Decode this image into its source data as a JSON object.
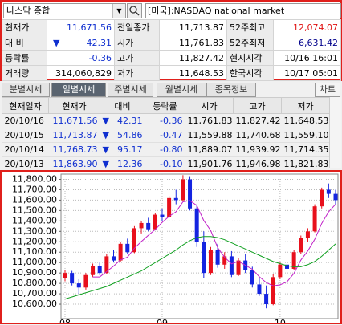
{
  "header": {
    "market": "나스닥 종합",
    "market_label": "[미국]:NASDAQ national market"
  },
  "quote": [
    {
      "label": "현재가",
      "value": "11,671.56",
      "label2": "전일종가",
      "value2": "11,713.87",
      "label3": "52주최고",
      "value3": "12,074.07"
    },
    {
      "label": "대 비",
      "arrow": "▼",
      "value": "42.31",
      "label2": "시가",
      "value2": "11,761.83",
      "label3": "52주최저",
      "value3": "6,631.42"
    },
    {
      "label": "등락률",
      "value": "-0.36",
      "label2": "고가",
      "value2": "11,827.42",
      "label3": "현지시각",
      "value3": "10/16 16:01"
    },
    {
      "label": "거래량",
      "value": "314,060,829",
      "label2": "저가",
      "value2": "11,648.53",
      "label3": "한국시각",
      "value3": "10/17 05:01"
    }
  ],
  "tabs": [
    "분별시세",
    "일별시세",
    "주별시세",
    "월별시세",
    "종목정보"
  ],
  "chart_button": "차트",
  "table": {
    "columns": [
      "현재일자",
      "현재가",
      "대비",
      "등락률",
      "시가",
      "고가",
      "저가"
    ],
    "rows": [
      [
        "20/10/16",
        "11,671.56",
        "▼",
        "42.31",
        "-0.36",
        "11,761.83",
        "11,827.42",
        "11,648.53"
      ],
      [
        "20/10/15",
        "11,713.87",
        "▼",
        "54.86",
        "-0.47",
        "11,559.88",
        "11,740.68",
        "11,559.10"
      ],
      [
        "20/10/14",
        "11,768.73",
        "▼",
        "95.17",
        "-0.80",
        "11,889.07",
        "11,939.92",
        "11,714.35"
      ],
      [
        "20/10/13",
        "11,863.90",
        "▼",
        "12.36",
        "-0.10",
        "11,901.76",
        "11,946.98",
        "11,821.83"
      ]
    ]
  },
  "chart_data": {
    "type": "candlestick",
    "categories": [
      "08",
      null,
      null,
      null,
      null,
      null,
      null,
      null,
      null,
      null,
      null,
      null,
      null,
      null,
      "09",
      null,
      null,
      null,
      null,
      null,
      null,
      null,
      null,
      null,
      null,
      null,
      null,
      null,
      null,
      null,
      null,
      "10",
      null,
      null,
      null,
      null,
      null,
      null,
      null,
      null
    ],
    "open": [
      10850,
      10900,
      10800,
      10760,
      10880,
      10970,
      10900,
      11060,
      11020,
      11180,
      11100,
      11330,
      11380,
      11320,
      11460,
      11440,
      11620,
      11600,
      11800,
      11520,
      11200,
      10900,
      11120,
      10980,
      11060,
      10880,
      11020,
      10930,
      10790,
      10700,
      10600,
      10860,
      10980,
      10940,
      11100,
      11240,
      11300,
      11540,
      11700,
      11660
    ],
    "high": [
      10930,
      10920,
      10840,
      10900,
      10990,
      11000,
      11080,
      11120,
      11200,
      11230,
      11350,
      11400,
      11430,
      11480,
      11520,
      11640,
      11700,
      11840,
      11830,
      11560,
      11300,
      11150,
      11180,
      11100,
      11110,
      11040,
      11080,
      10960,
      10850,
      10780,
      10890,
      11000,
      11060,
      11120,
      11260,
      11330,
      11560,
      11720,
      11760,
      11700
    ],
    "low": [
      10820,
      10780,
      10700,
      10740,
      10860,
      10880,
      10890,
      11000,
      11010,
      11080,
      11090,
      11280,
      11300,
      11310,
      11400,
      11430,
      11560,
      11590,
      11500,
      11150,
      10850,
      10880,
      10950,
      10940,
      10860,
      10870,
      10900,
      10760,
      10680,
      10560,
      10590,
      10840,
      10900,
      10930,
      11080,
      11200,
      11290,
      11520,
      11620,
      11560
    ],
    "close": [
      10900,
      10800,
      10760,
      10880,
      10970,
      10900,
      11060,
      11020,
      11180,
      11100,
      11330,
      11380,
      11320,
      11460,
      11440,
      11620,
      11600,
      11800,
      11520,
      11200,
      10900,
      11120,
      10980,
      11060,
      10880,
      11020,
      10930,
      10790,
      10700,
      10600,
      10860,
      10980,
      10940,
      11100,
      11240,
      11300,
      11540,
      11700,
      11660,
      11600
    ],
    "up_color": "#e8101c",
    "down_color": "#1424e0",
    "ma": [
      {
        "color": "#c020c8",
        "values": [
          null,
          null,
          null,
          null,
          10862,
          10862,
          10914,
          10966,
          11026,
          11052,
          11138,
          11202,
          11262,
          11318,
          11386,
          11444,
          11488,
          11584,
          11596,
          11548,
          11404,
          11308,
          11144,
          11052,
          10988,
          11012,
          10974,
          10936,
          10864,
          10808,
          10776,
          10786,
          10816,
          10896,
          11024,
          11112,
          11224,
          11376,
          11488,
          11560
        ]
      },
      {
        "color": "#10a020",
        "values": [
          10650,
          10670,
          10690,
          10710,
          10730,
          10750,
          10770,
          10800,
          10830,
          10860,
          10890,
          10920,
          10960,
          11000,
          11040,
          11080,
          11120,
          11170,
          11210,
          11240,
          11250,
          11250,
          11240,
          11220,
          11190,
          11160,
          11130,
          11100,
          11070,
          11040,
          11010,
          10990,
          10970,
          10960,
          10960,
          10980,
          11010,
          11060,
          11120,
          11180
        ]
      }
    ],
    "ylim": [
      10500,
      11850
    ],
    "yticks": [
      {
        "value": 10600,
        "label": "10,600.00"
      },
      {
        "value": 10700,
        "label": "10,700.00"
      },
      {
        "value": 10800,
        "label": "10,800.00"
      },
      {
        "value": 10900,
        "label": "10,900.00"
      },
      {
        "value": 11000,
        "label": "11,000.00"
      },
      {
        "value": 11100,
        "label": "11,100.00"
      },
      {
        "value": 11200,
        "label": "11,200.00"
      },
      {
        "value": 11300,
        "label": "11,300.00"
      },
      {
        "value": 11400,
        "label": "11,400.00"
      },
      {
        "value": 11500,
        "label": "11,500.00"
      },
      {
        "value": 11600,
        "label": "11,600.00"
      },
      {
        "value": 11700,
        "label": "11,700.00"
      },
      {
        "value": 11800,
        "label": "11,800.00"
      }
    ],
    "grid": true
  }
}
